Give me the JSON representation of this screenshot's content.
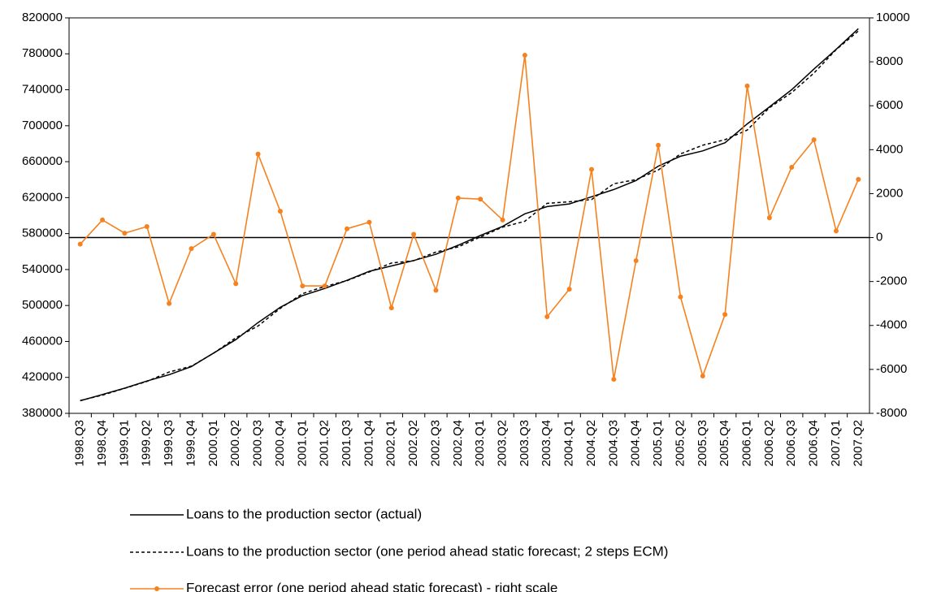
{
  "chart_data": {
    "type": "line",
    "categories": [
      "1998.Q3",
      "1998.Q4",
      "1999.Q1",
      "1999.Q2",
      "1999.Q3",
      "1999.Q4",
      "2000.Q1",
      "2000.Q2",
      "2000.Q3",
      "2000.Q4",
      "2001.Q1",
      "2001.Q2",
      "2001.Q3",
      "2001.Q4",
      "2002.Q1",
      "2002.Q2",
      "2002.Q3",
      "2002.Q4",
      "2003.Q1",
      "2003.Q2",
      "2003.Q3",
      "2003.Q4",
      "2004.Q1",
      "2004.Q2",
      "2004.Q3",
      "2004.Q4",
      "2005.Q1",
      "2005.Q2",
      "2005.Q3",
      "2005.Q4",
      "2006.Q1",
      "2006.Q2",
      "2006.Q3",
      "2006.Q4",
      "2007.Q1",
      "2007.Q2"
    ],
    "series": [
      {
        "name": "Loans to the production sector (actual)",
        "color": "#000000",
        "dash": false,
        "markers": false,
        "values": [
          394000,
          401000,
          408000,
          416000,
          423000,
          432000,
          447000,
          462000,
          481000,
          498000,
          511000,
          519000,
          528000,
          538000,
          544000,
          550000,
          557000,
          567000,
          578000,
          588000,
          602000,
          610000,
          613000,
          621000,
          629000,
          639000,
          655000,
          666000,
          672000,
          681000,
          702000,
          721000,
          740000,
          763000,
          785000,
          808000
        ]
      },
      {
        "name": "Loans to the production sector (one period ahead static forecast; 2 steps ECM)",
        "color": "#000000",
        "dash": true,
        "markers": false,
        "values": [
          394300,
          400200,
          407800,
          415500,
          426000,
          432500,
          446850,
          464100,
          477200,
          496800,
          513200,
          521200,
          527600,
          537300,
          547200,
          549850,
          559400,
          565200,
          576250,
          587200,
          593700,
          613600,
          615350,
          617900,
          635450,
          640050,
          650800,
          668700,
          678300,
          684500,
          695100,
          720100,
          736800,
          758550,
          784700,
          805350
        ]
      },
      {
        "name": "Forecast error (one period ahead static forecast) - right scale",
        "color": "#f5821f",
        "dash": false,
        "markers": true,
        "axis": "y2",
        "values": [
          -300,
          800,
          200,
          500,
          -3000,
          -500,
          150,
          -2100,
          3800,
          1200,
          -2200,
          -2200,
          400,
          700,
          -3200,
          150,
          -2400,
          1800,
          1750,
          800,
          8300,
          -3600,
          -2350,
          3100,
          -6450,
          -1050,
          4200,
          -2700,
          -6300,
          -3500,
          6900,
          900,
          3200,
          4450,
          300,
          2650
        ]
      }
    ],
    "ylim": [
      380000,
      820000
    ],
    "yticks": [
      380000,
      420000,
      460000,
      500000,
      540000,
      580000,
      620000,
      660000,
      700000,
      740000,
      780000,
      820000
    ],
    "y2lim": [
      -8000,
      10000
    ],
    "y2ticks": [
      -8000,
      -6000,
      -4000,
      -2000,
      0,
      2000,
      4000,
      6000,
      8000,
      10000
    ],
    "zero_line": true,
    "grid": false
  }
}
